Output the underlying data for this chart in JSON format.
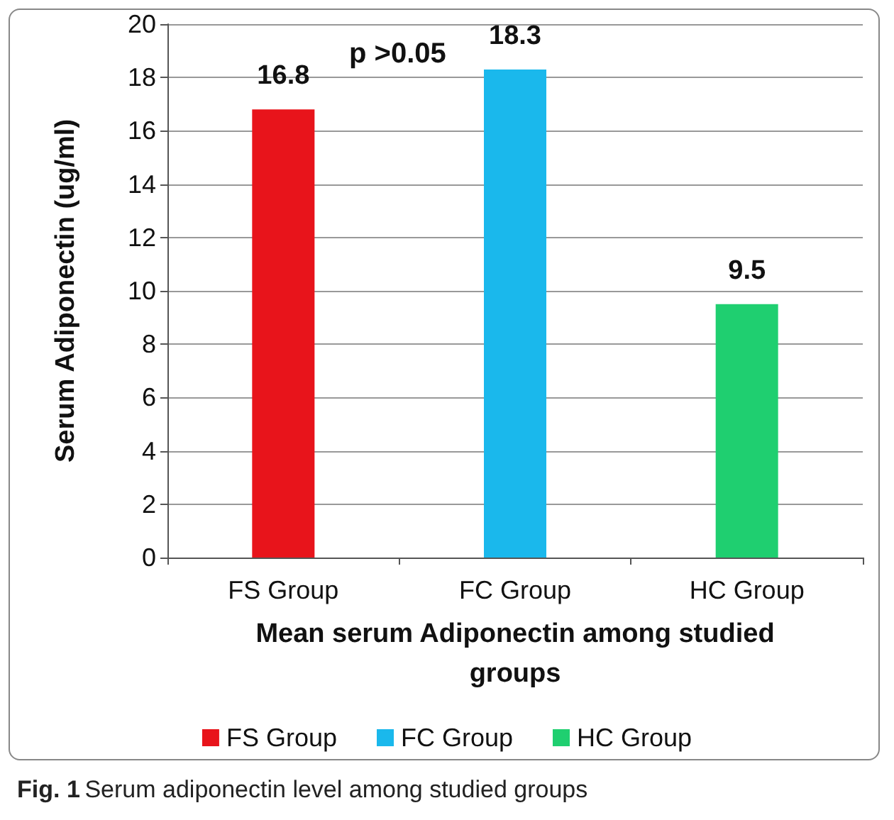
{
  "chart_data": {
    "type": "bar",
    "xlabel": "Mean serum Adiponectin among studied groups",
    "ylabel": "Serum Adiponectin (ug/ml)",
    "categories": [
      "FS Group",
      "FC Group",
      "HC Group"
    ],
    "series": [
      {
        "name": "FS Group",
        "color": "#e8141b",
        "values": [
          16.8,
          null,
          null
        ]
      },
      {
        "name": "FC Group",
        "color": "#1ab8ec",
        "values": [
          null,
          18.3,
          null
        ]
      },
      {
        "name": "HC Group",
        "color": "#1fcf70",
        "values": [
          null,
          null,
          9.5
        ]
      }
    ],
    "stacked": true,
    "ylim": [
      0,
      20
    ],
    "yticks": [
      0,
      2,
      4,
      6,
      8,
      10,
      12,
      14,
      16,
      18,
      20
    ],
    "grid": "y",
    "legend": "bottom",
    "data_labels": true,
    "annotations": [
      "p >0.05",
      "Fig. 1 Serum adiponectin level among studied groups"
    ]
  }
}
